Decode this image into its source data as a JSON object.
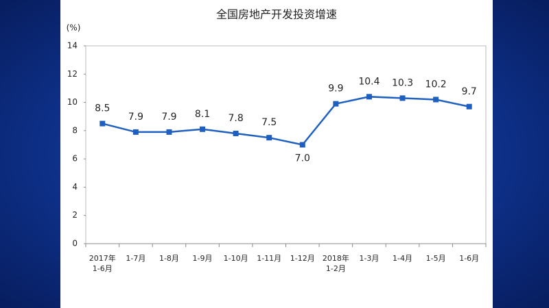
{
  "chart_data": {
    "type": "line",
    "title": "全国房地产开发投资增速",
    "y_label": "(%)",
    "categories": [
      "2017年\n1-6月",
      "1-7月",
      "1-8月",
      "1-9月",
      "1-10月",
      "1-11月",
      "1-12月",
      "2018年\n1-2月",
      "1-3月",
      "1-4月",
      "1-5月",
      "1-6月"
    ],
    "series": [
      {
        "name": "全国房地产开发投资增速",
        "color": "#1f5fc0",
        "values": [
          8.5,
          7.9,
          7.9,
          8.1,
          7.8,
          7.5,
          7.0,
          9.9,
          10.4,
          10.3,
          10.2,
          9.7
        ],
        "value_labels": [
          "8.5",
          "7.9",
          "7.9",
          "8.1",
          "7.8",
          "7.5",
          "7.0",
          "9.9",
          "10.4",
          "10.3",
          "10.2",
          "9.7"
        ]
      }
    ],
    "ylim": [
      0,
      14
    ],
    "yticks": [
      0,
      2,
      4,
      6,
      8,
      10,
      12,
      14
    ],
    "grid": false
  }
}
